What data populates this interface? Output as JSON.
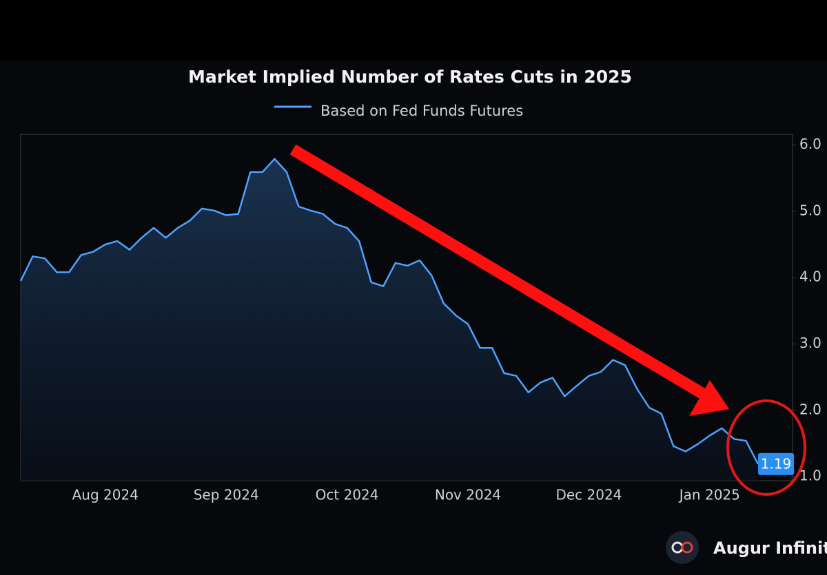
{
  "chart_data": {
    "type": "line",
    "title": "Market Implied Number of Rates Cuts in 2025",
    "watermark": "Augur Infinity",
    "categories": [
      null,
      null,
      null,
      null,
      null,
      null,
      null,
      "Aug 2024",
      null,
      null,
      null,
      null,
      null,
      null,
      null,
      null,
      null,
      "Sep 2024",
      null,
      null,
      null,
      null,
      null,
      null,
      null,
      null,
      null,
      "Oct 2024",
      null,
      null,
      null,
      null,
      null,
      null,
      null,
      null,
      null,
      "Nov 2024",
      null,
      null,
      null,
      null,
      null,
      null,
      null,
      null,
      null,
      "Dec 2024",
      null,
      null,
      null,
      null,
      null,
      null,
      null,
      null,
      null,
      "Jan 2025",
      null,
      null,
      null,
      null
    ],
    "series": [
      {
        "name": "Based on Fed Funds Futures",
        "color": "#4da3ff",
        "values": [
          3.95,
          4.32,
          4.29,
          4.08,
          4.08,
          4.34,
          4.39,
          4.5,
          4.55,
          4.42,
          4.6,
          4.75,
          4.6,
          4.75,
          4.86,
          5.04,
          5.01,
          4.94,
          4.96,
          5.59,
          5.59,
          5.79,
          5.59,
          5.07,
          5.01,
          4.96,
          4.81,
          4.75,
          4.55,
          3.93,
          3.87,
          4.22,
          4.18,
          4.26,
          4.03,
          3.61,
          3.43,
          3.3,
          2.94,
          2.94,
          2.56,
          2.52,
          2.27,
          2.42,
          2.49,
          2.21,
          2.37,
          2.52,
          2.58,
          2.76,
          2.68,
          2.32,
          2.04,
          1.95,
          1.46,
          1.38,
          1.49,
          1.62,
          1.73,
          1.57,
          1.54,
          1.19
        ]
      }
    ],
    "ylim": [
      0.94,
      6.16
    ],
    "yticks": [
      {
        "value": 1,
        "label": "1.0"
      },
      {
        "value": 2,
        "label": "2.0"
      },
      {
        "value": 3,
        "label": "3.0"
      },
      {
        "value": 4,
        "label": "4.0"
      },
      {
        "value": 5,
        "label": "5.0"
      },
      {
        "value": 6,
        "label": "6.0"
      }
    ],
    "grid": false,
    "legend": "top"
  }
}
